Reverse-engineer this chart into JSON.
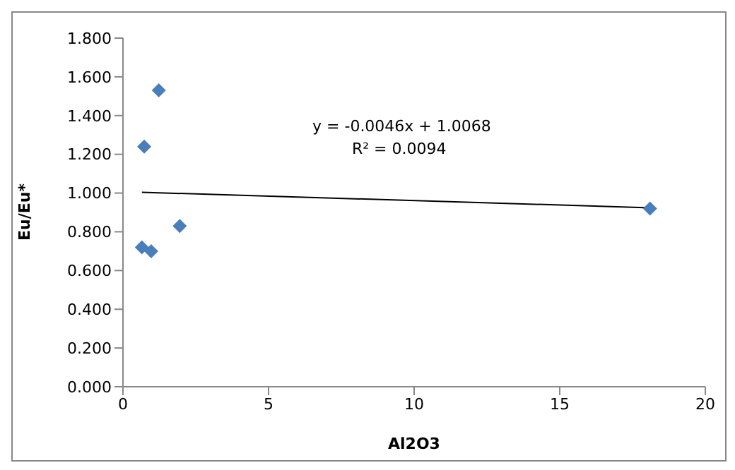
{
  "chart_data": {
    "type": "scatter",
    "xlabel": "Al2O3",
    "ylabel": "Eu/Eu*",
    "xlim": [
      0,
      20
    ],
    "xticks": [
      0,
      5,
      10,
      15,
      20
    ],
    "ylim": [
      0,
      1.8
    ],
    "yticks": [
      {
        "value": 0,
        "label": "0.000"
      },
      {
        "value": 0.2,
        "label": "0.200"
      },
      {
        "value": 0.4,
        "label": "0.400"
      },
      {
        "value": 0.6,
        "label": "0.600"
      },
      {
        "value": 0.8,
        "label": "0.800"
      },
      {
        "value": 1,
        "label": "1.000"
      },
      {
        "value": 1.2,
        "label": "1.200"
      },
      {
        "value": 1.4,
        "label": "1.400"
      },
      {
        "value": 1.6,
        "label": "1.600"
      },
      {
        "value": 1.8,
        "label": "1.800"
      }
    ],
    "grid": false,
    "legend": false,
    "series": [
      {
        "marker": "diamond",
        "color": "#4a7ebb",
        "x": [
          0.65,
          0.97,
          1.95,
          0.73,
          1.23,
          18.1
        ],
        "values": [
          0.72,
          0.7,
          0.83,
          1.24,
          1.53,
          0.92
        ]
      },
      {
        "type": "line",
        "marker": "none",
        "color": "#000000",
        "x": [
          0.65,
          18.1
        ],
        "values": [
          1.004,
          0.924
        ]
      }
    ],
    "annotations": [
      "y = -0.0046x + 1.0068",
      "R² = 0.0094"
    ]
  }
}
